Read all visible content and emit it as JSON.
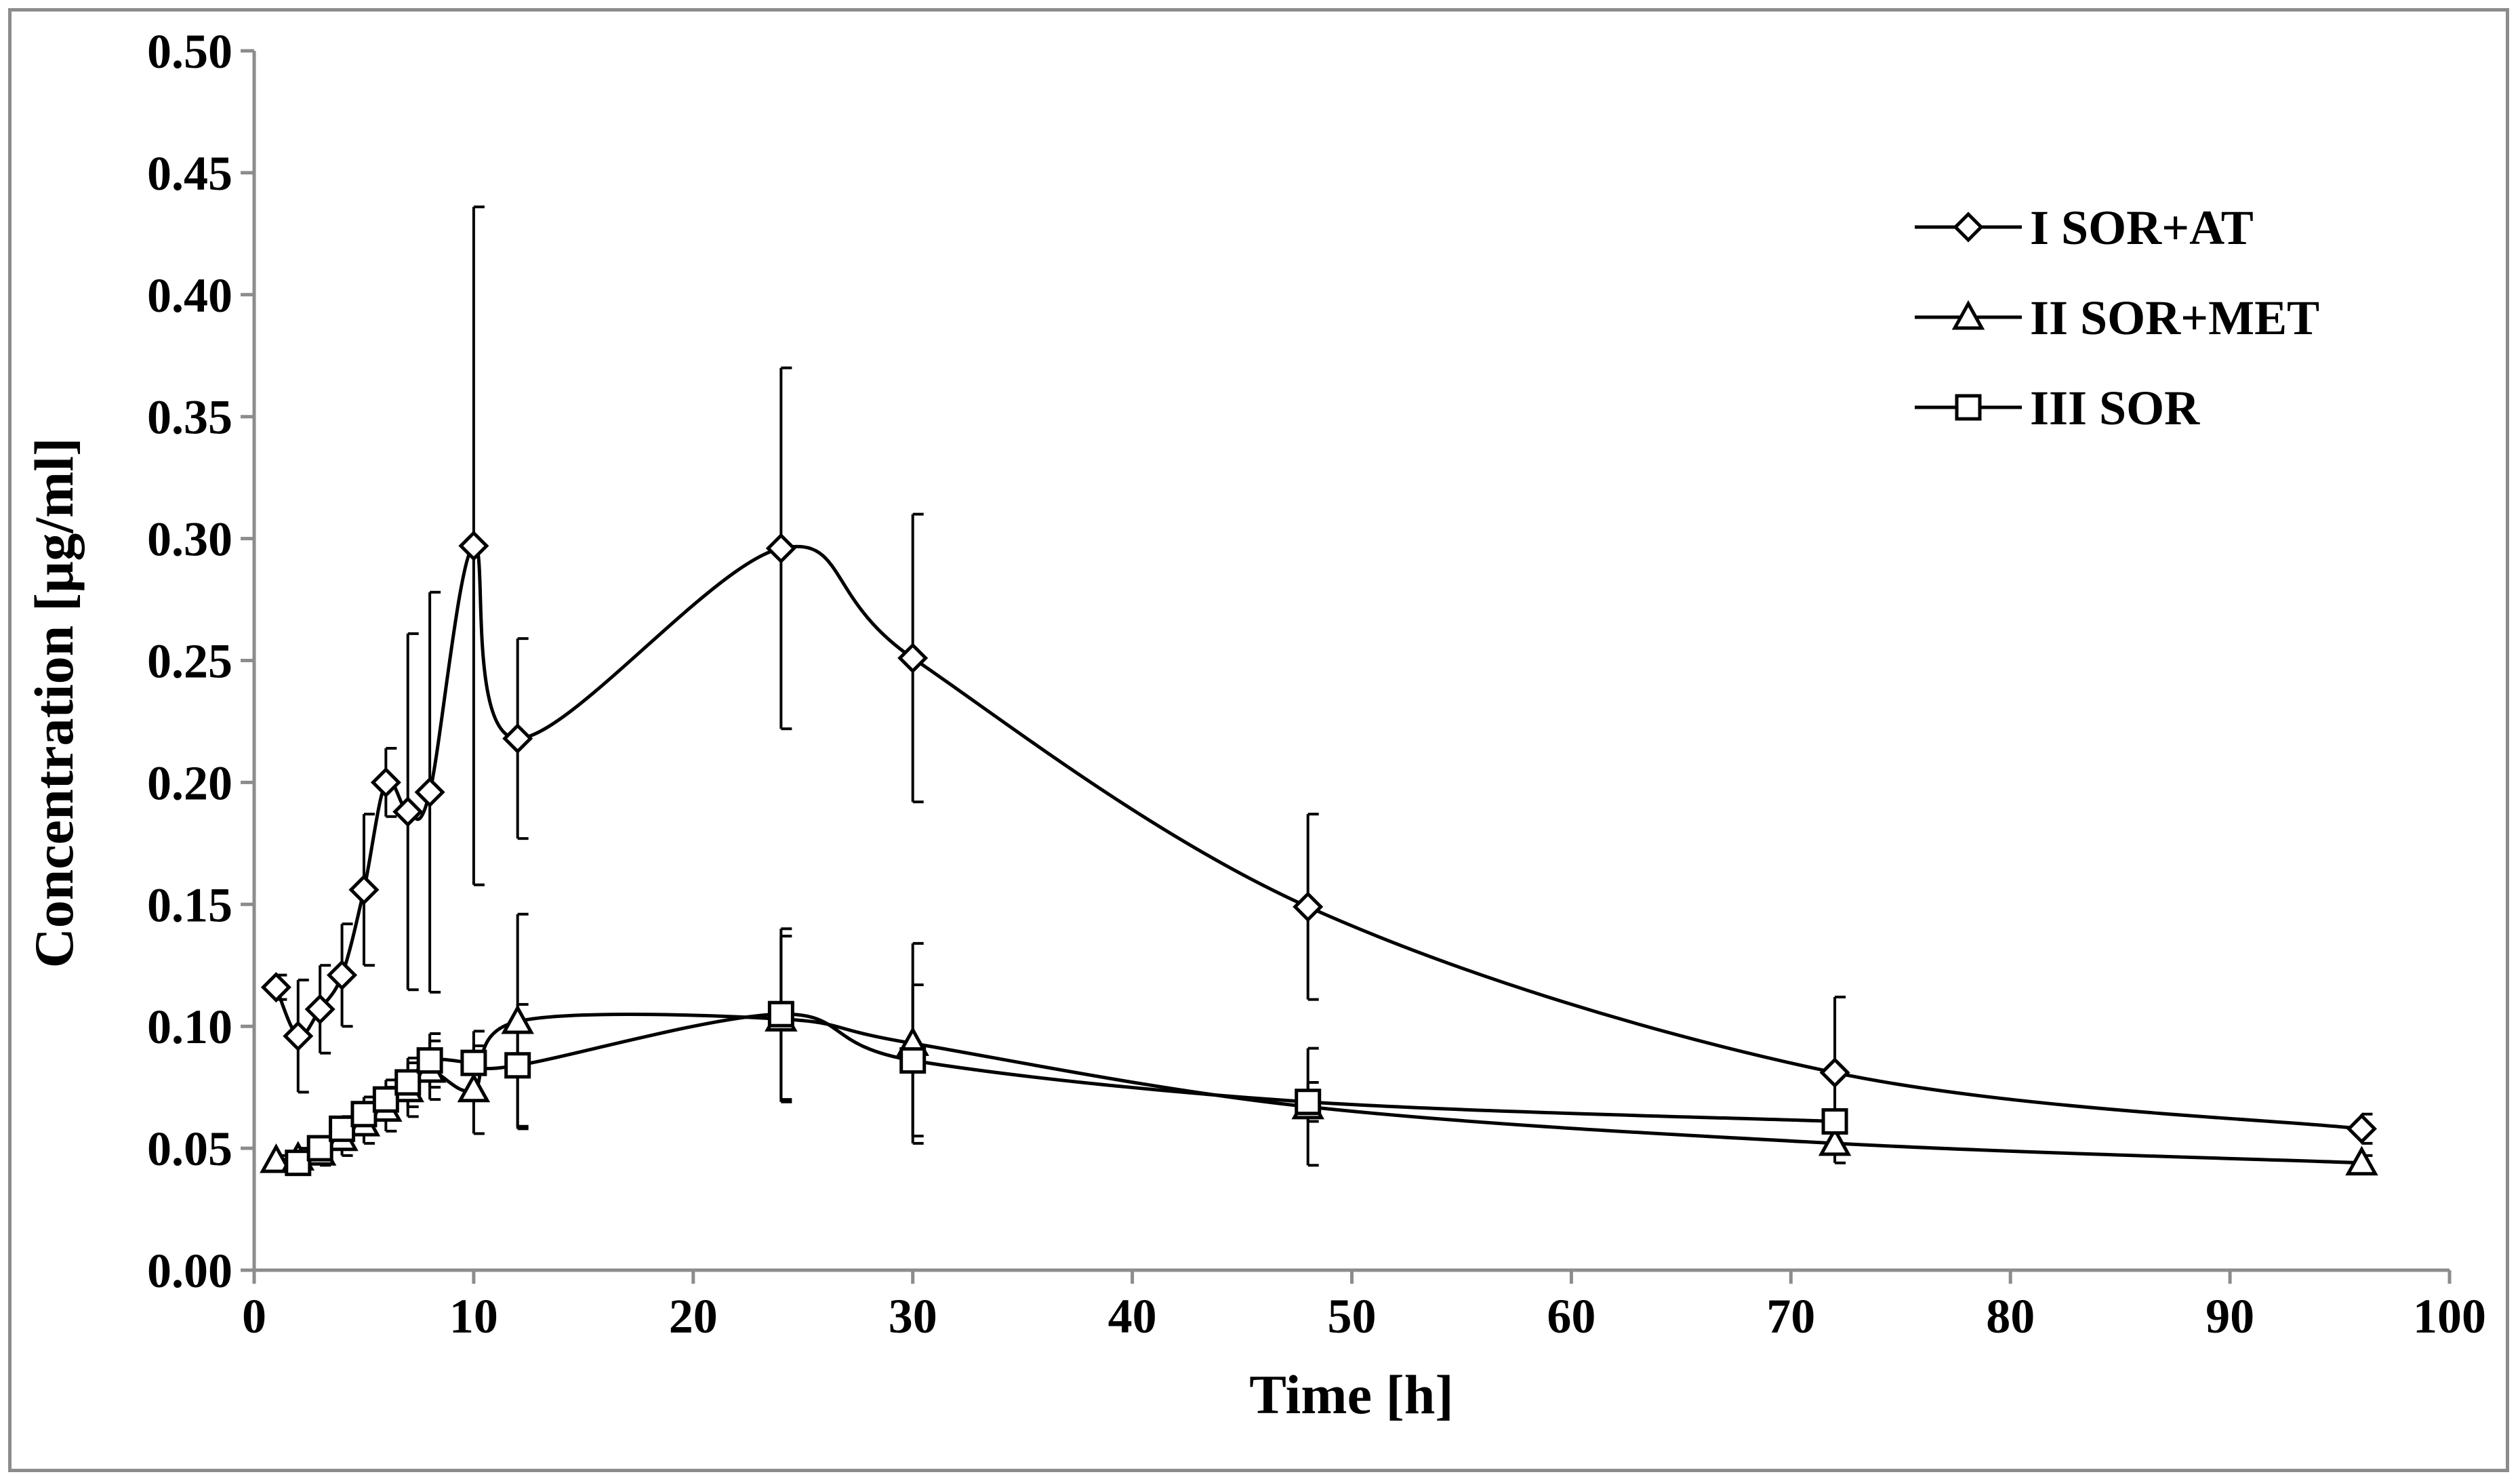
{
  "chart_data": {
    "type": "line",
    "title": "",
    "xlabel": "Time [h]",
    "ylabel": "Concentration [µg/ml]",
    "xlim": [
      0,
      100
    ],
    "ylim": [
      0,
      0.5
    ],
    "x_ticks": [
      {
        "value": 0,
        "label": "0"
      },
      {
        "value": 10,
        "label": "10"
      },
      {
        "value": 20,
        "label": "20"
      },
      {
        "value": 30,
        "label": "30"
      },
      {
        "value": 40,
        "label": "40"
      },
      {
        "value": 50,
        "label": "50"
      },
      {
        "value": 60,
        "label": "60"
      },
      {
        "value": 70,
        "label": "70"
      },
      {
        "value": 80,
        "label": "80"
      },
      {
        "value": 90,
        "label": "90"
      },
      {
        "value": 100,
        "label": "100"
      }
    ],
    "y_ticks": [
      {
        "value": 0,
        "label": "0.00"
      },
      {
        "value": 0.05,
        "label": "0.05"
      },
      {
        "value": 0.1,
        "label": "0.10"
      },
      {
        "value": 0.15,
        "label": "0.15"
      },
      {
        "value": 0.2,
        "label": "0.20"
      },
      {
        "value": 0.25,
        "label": "0.25"
      },
      {
        "value": 0.3,
        "label": "0.30"
      },
      {
        "value": 0.35,
        "label": "0.35"
      },
      {
        "value": 0.4,
        "label": "0.40"
      },
      {
        "value": 0.45,
        "label": "0.45"
      },
      {
        "value": 0.5,
        "label": "0.50"
      }
    ],
    "grid": false,
    "legend_position": "top-right",
    "series": [
      {
        "name": "I SOR+AT",
        "marker": "diamond",
        "x": [
          1,
          2,
          3,
          4,
          5,
          6,
          7,
          8,
          10,
          12,
          24,
          30,
          48,
          72,
          96
        ],
        "y": [
          0.116,
          0.096,
          0.107,
          0.121,
          0.156,
          0.2,
          0.188,
          0.196,
          0.297,
          0.218,
          0.296,
          0.251,
          0.149,
          0.081,
          0.058
        ],
        "err": [
          0.005,
          0.023,
          0.018,
          0.021,
          0.031,
          0.014,
          0.073,
          0.082,
          0.139,
          0.041,
          0.074,
          0.059,
          0.038,
          0.031,
          0.006
        ]
      },
      {
        "name": "II SOR+MET",
        "marker": "triangle",
        "x": [
          1,
          2,
          3,
          4,
          5,
          6,
          7,
          8,
          10,
          12,
          24,
          30,
          48,
          72,
          96
        ],
        "y": [
          0.045,
          0.046,
          0.048,
          0.054,
          0.06,
          0.066,
          0.074,
          0.082,
          0.074,
          0.102,
          0.103,
          0.093,
          0.067,
          0.052,
          0.044
        ],
        "err": [
          0.002,
          0.004,
          0.005,
          0.007,
          0.008,
          0.009,
          0.011,
          0.012,
          0.018,
          0.044,
          0.034,
          0.041,
          0.024,
          0.008,
          0.003
        ]
      },
      {
        "name": "III SOR",
        "marker": "square",
        "x": [
          2,
          3,
          4,
          5,
          6,
          7,
          8,
          10,
          12,
          24,
          30,
          48,
          72
        ],
        "y": [
          0.044,
          0.05,
          0.058,
          0.064,
          0.07,
          0.077,
          0.086,
          0.085,
          0.084,
          0.105,
          0.086,
          0.069,
          0.061
        ],
        "err": [
          0.003,
          0.004,
          0.005,
          0.007,
          0.008,
          0.01,
          0.011,
          0.013,
          0.025,
          0.035,
          0.031,
          0.008,
          0.002
        ]
      }
    ]
  }
}
